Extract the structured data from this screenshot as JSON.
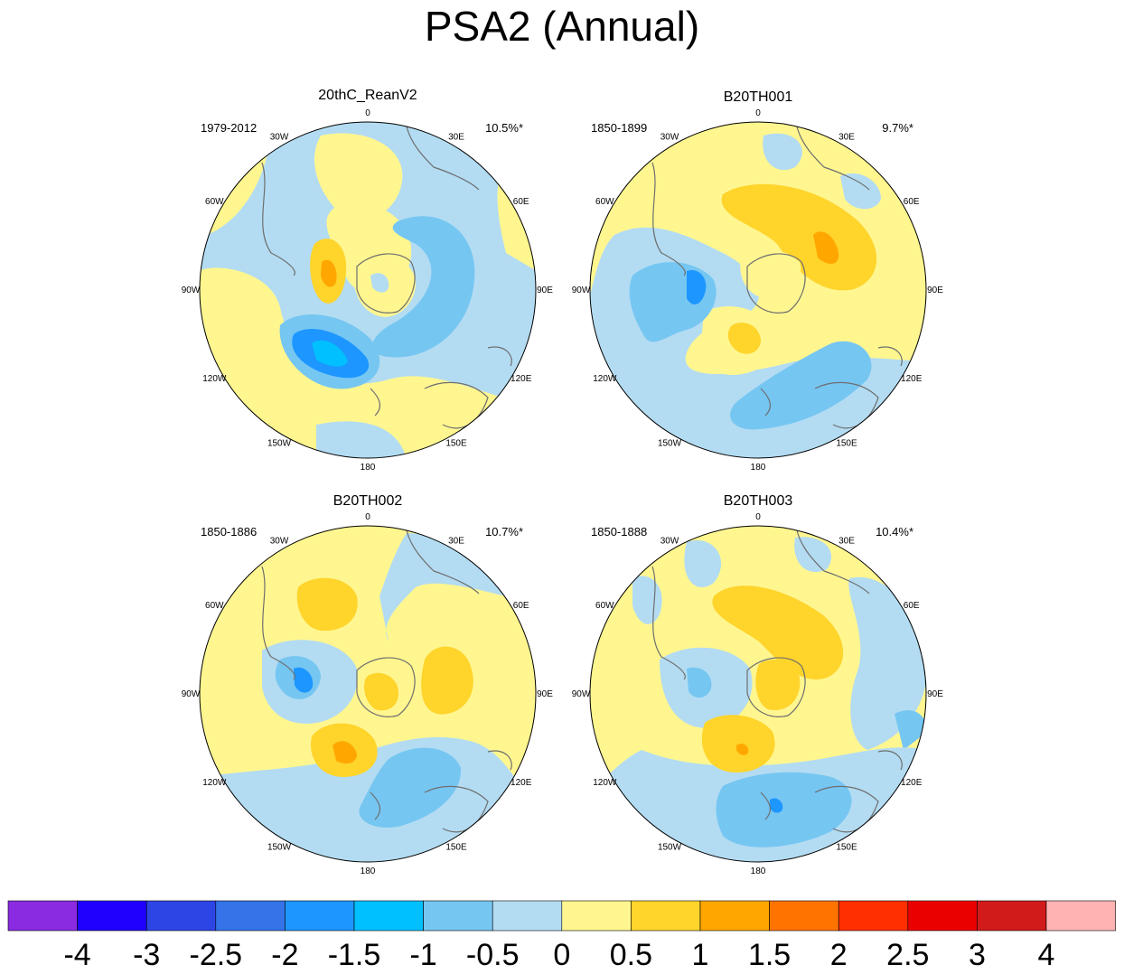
{
  "title": "PSA2 (Annual)",
  "colors": {
    "land_outline": "#6e6e6e",
    "frame": "#000000"
  },
  "panels": [
    {
      "name": "20thC_ReanV2",
      "period": "1979-2012",
      "pct": "10.5%*"
    },
    {
      "name": "B20TH001",
      "period": "1850-1899",
      "pct": "9.7%*"
    },
    {
      "name": "B20TH002",
      "period": "1850-1886",
      "pct": "10.7%*"
    },
    {
      "name": "B20TH003",
      "period": "1850-1888",
      "pct": "10.4%*"
    }
  ],
  "longitude_labels": [
    "0",
    "30E",
    "60E",
    "90E",
    "120E",
    "150E",
    "180",
    "150W",
    "120W",
    "90W",
    "60W",
    "30W"
  ],
  "colorbar": {
    "colors": [
      "#8a2be2",
      "#1f00ff",
      "#2e45e6",
      "#3473e8",
      "#1d96ff",
      "#00c0ff",
      "#76c6f2",
      "#b3dcf2",
      "#fff690",
      "#ffd42b",
      "#ffa700",
      "#ff7300",
      "#ff2f00",
      "#eb0000",
      "#d11b1b",
      "#ffb3b3"
    ],
    "labels": [
      "-4",
      "-3",
      "-2.5",
      "-2",
      "-1.5",
      "-1",
      "-0.5",
      "0",
      "0.5",
      "1",
      "1.5",
      "2",
      "2.5",
      "3",
      "4"
    ]
  }
}
